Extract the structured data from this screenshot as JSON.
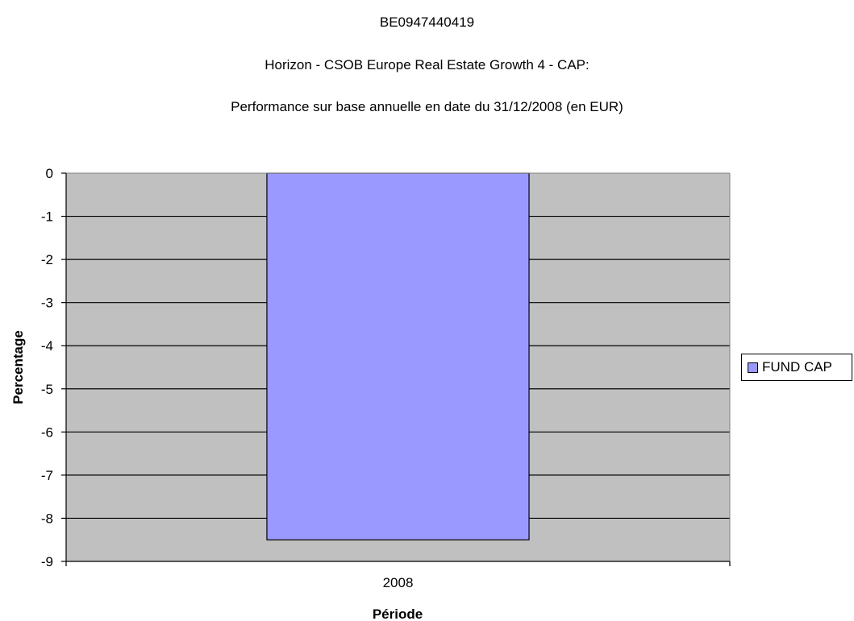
{
  "chart_data": {
    "type": "bar",
    "title_lines": [
      "BE0947440419",
      "Horizon - CSOB Europe Real Estate Growth 4 - CAP:",
      "Performance sur base annuelle en date du 31/12/2008 (en EUR)"
    ],
    "categories": [
      "2008"
    ],
    "series": [
      {
        "name": "FUND CAP",
        "values": [
          -8.5
        ],
        "color": "#9999ff"
      }
    ],
    "xlabel": "Période",
    "ylabel": "Percentage",
    "ylim": [
      -9,
      0
    ],
    "yticks": [
      "0",
      "-1",
      "-2",
      "-3",
      "-4",
      "-5",
      "-6",
      "-7",
      "-8",
      "-9"
    ],
    "grid": true,
    "legend_position": "right",
    "plot_background": "#c0c0c0",
    "bar_edge_color": "#000000"
  }
}
